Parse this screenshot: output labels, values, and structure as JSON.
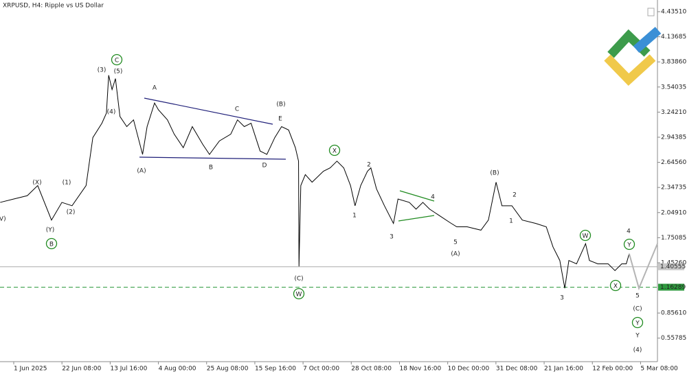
{
  "chart_data": {
    "type": "line",
    "title": "XRPUSD, H4:  Ripple vs US Dollar",
    "xlim": [
      -6.08,
      284.8
    ],
    "ylim": [
      0.2786,
      4.5737
    ],
    "xticks": [
      {
        "value": 0,
        "label": "1 Jun 2025"
      },
      {
        "value": 21.333,
        "label": "22 Jun 08:00"
      },
      {
        "value": 42.667,
        "label": "13 Jul 16:00"
      },
      {
        "value": 64,
        "label": "4 Aug 00:00"
      },
      {
        "value": 85.333,
        "label": "25 Aug 08:00"
      },
      {
        "value": 106.667,
        "label": "15 Sep 16:00"
      },
      {
        "value": 128,
        "label": "7 Oct 00:00"
      },
      {
        "value": 149.333,
        "label": "28 Oct 08:00"
      },
      {
        "value": 170.667,
        "label": "18 Nov 16:00"
      },
      {
        "value": 192,
        "label": "10 Dec 00:00"
      },
      {
        "value": 213.333,
        "label": "31 Dec 08:00"
      },
      {
        "value": 234.667,
        "label": "21 Jan 16:00"
      },
      {
        "value": 256,
        "label": "12 Feb 00:00"
      },
      {
        "value": 277.333,
        "label": "5 Mar 08:00"
      }
    ],
    "yticks": [
      {
        "value": 4.4351,
        "label": "4.43510"
      },
      {
        "value": 4.13685,
        "label": "4.13685"
      },
      {
        "value": 3.8386,
        "label": "3.83860"
      },
      {
        "value": 3.54035,
        "label": "3.54035"
      },
      {
        "value": 3.2421,
        "label": "3.24210"
      },
      {
        "value": 2.94385,
        "label": "2.94385"
      },
      {
        "value": 2.6456,
        "label": "2.64560"
      },
      {
        "value": 2.34735,
        "label": "2.34735"
      },
      {
        "value": 2.0491,
        "label": "2.04910"
      },
      {
        "value": 1.75085,
        "label": "1.75085"
      },
      {
        "value": 1.4526,
        "label": "1.45260"
      },
      {
        "value": 0.8561,
        "label": "0.85610"
      },
      {
        "value": 0.55785,
        "label": "0.55785"
      }
    ],
    "current_price": {
      "value": 1.40555,
      "label": "1.40555"
    },
    "level": {
      "value": 1.16289,
      "label": "1.16289"
    },
    "series": [
      {
        "color": "#000000",
        "x": [
          -6,
          0,
          6,
          10.6,
          16.7,
          21.3,
          25.8,
          32,
          35,
          39,
          41,
          42,
          43.5,
          45,
          47,
          50,
          53,
          57,
          59,
          62.3,
          64,
          68,
          71,
          75,
          79,
          83.6,
          86.6,
          91,
          96,
          99,
          102,
          105,
          109,
          112,
          115.5,
          118.5,
          121.6,
          124.6,
          126,
          126.2,
          127,
          129,
          132,
          137,
          140,
          143,
          146,
          149,
          151,
          153.5,
          156.5,
          158,
          160.5,
          164,
          168,
          170,
          175,
          178,
          181,
          184,
          188.5,
          193,
          196,
          200.6,
          206.7,
          210,
          213.4,
          216,
          220.4,
          225,
          231,
          235.6,
          238.6,
          241.6,
          243.8,
          245.6,
          249,
          253,
          254.7,
          258.4,
          263,
          266,
          269,
          271,
          272.3
        ],
        "values": [
          2.17,
          2.21,
          2.25,
          2.37,
          1.96,
          2.17,
          2.13,
          2.37,
          2.94,
          3.11,
          3.23,
          3.68,
          3.51,
          3.64,
          3.19,
          3.07,
          3.15,
          2.74,
          3.07,
          3.35,
          3.27,
          3.15,
          2.98,
          2.82,
          3.07,
          2.86,
          2.74,
          2.9,
          2.98,
          3.15,
          3.07,
          3.11,
          2.78,
          2.74,
          2.94,
          3.07,
          3.03,
          2.82,
          2.66,
          1.41,
          2.37,
          2.5,
          2.41,
          2.54,
          2.58,
          2.66,
          2.58,
          2.37,
          2.13,
          2.37,
          2.54,
          2.58,
          2.33,
          2.13,
          1.92,
          2.21,
          2.17,
          2.09,
          2.17,
          2.09,
          2.01,
          1.93,
          1.88,
          1.88,
          1.84,
          1.96,
          2.41,
          2.13,
          2.13,
          1.96,
          1.92,
          1.88,
          1.64,
          1.48,
          1.15,
          1.48,
          1.44,
          1.68,
          1.48,
          1.44,
          1.44,
          1.36,
          1.44,
          1.44,
          1.56
        ]
      },
      {
        "color": "#b4b4b4",
        "x": [
          272.3,
          276.6,
          284.8
        ],
        "values": [
          1.56,
          1.15,
          1.68
        ]
      }
    ],
    "annotations": [
      "(V)",
      "(X)",
      "(Y)",
      "B",
      "(1)",
      "(2)",
      "(3)",
      "(5)",
      "C",
      "(4)",
      "A",
      "(A)",
      "B",
      "C",
      "D",
      "E",
      "(B)",
      "(C)",
      "W",
      "X",
      "2",
      "1",
      "3",
      "4",
      "5",
      "(A)",
      "(B)",
      "2",
      "1",
      "3",
      "W",
      "X",
      "4",
      "Y",
      "5",
      "(C)",
      "Y",
      "Y",
      "(4)"
    ]
  }
}
